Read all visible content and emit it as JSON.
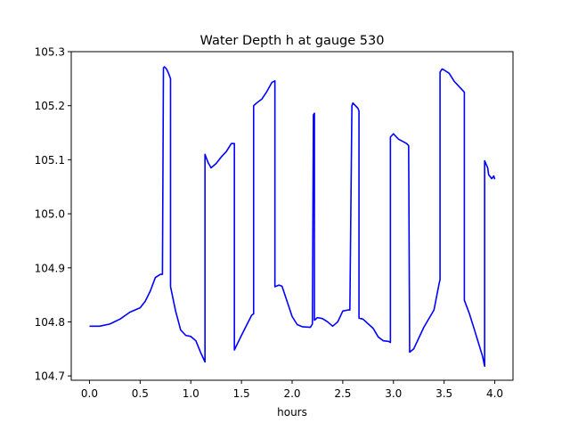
{
  "chart_data": {
    "type": "line",
    "title": "Water Depth h at gauge 530",
    "xlabel": "hours",
    "ylabel": "",
    "xlim": [
      -0.18,
      4.18
    ],
    "ylim": [
      104.692,
      105.3
    ],
    "xticks": [
      0.0,
      0.5,
      1.0,
      1.5,
      2.0,
      2.5,
      3.0,
      3.5,
      4.0
    ],
    "xtick_labels": [
      "0.0",
      "0.5",
      "1.0",
      "1.5",
      "2.0",
      "2.5",
      "3.0",
      "3.5",
      "4.0"
    ],
    "yticks": [
      104.7,
      104.8,
      104.9,
      105.0,
      105.1,
      105.2,
      105.3
    ],
    "ytick_labels": [
      "104.7",
      "104.8",
      "104.9",
      "105.0",
      "105.1",
      "105.2",
      "105.3"
    ],
    "grid": false,
    "line_color": "#0000ff",
    "series": [
      {
        "name": "",
        "x": [
          0.0,
          0.1,
          0.2,
          0.3,
          0.4,
          0.5,
          0.55,
          0.6,
          0.65,
          0.7,
          0.72,
          0.73,
          0.74,
          0.76,
          0.78,
          0.8,
          0.8,
          0.85,
          0.9,
          0.95,
          1.0,
          1.05,
          1.1,
          1.14,
          1.14,
          1.15,
          1.17,
          1.2,
          1.25,
          1.3,
          1.35,
          1.4,
          1.43,
          1.43,
          1.5,
          1.6,
          1.62,
          1.62,
          1.65,
          1.7,
          1.75,
          1.8,
          1.83,
          1.83,
          1.87,
          1.9,
          2.0,
          2.05,
          2.1,
          2.18,
          2.2,
          2.21,
          2.22,
          2.22,
          2.25,
          2.3,
          2.35,
          2.4,
          2.45,
          2.5,
          2.55,
          2.57,
          2.59,
          2.6,
          2.6,
          2.65,
          2.66,
          2.66,
          2.7,
          2.8,
          2.85,
          2.9,
          2.95,
          2.97,
          2.97,
          3.0,
          3.05,
          3.1,
          3.13,
          3.14,
          3.15,
          3.16,
          3.2,
          3.3,
          3.4,
          3.45,
          3.46,
          3.46,
          3.48,
          3.5,
          3.55,
          3.6,
          3.65,
          3.7,
          3.7,
          3.75,
          3.8,
          3.88,
          3.9,
          3.9,
          3.93,
          3.94,
          3.95,
          3.97,
          3.99,
          4.0
        ],
        "y": [
          104.792,
          104.792,
          104.796,
          104.805,
          104.818,
          104.826,
          104.838,
          104.857,
          104.882,
          104.888,
          104.888,
          105.27,
          105.272,
          105.268,
          105.26,
          105.25,
          104.865,
          104.82,
          104.785,
          104.775,
          104.773,
          104.765,
          104.742,
          104.726,
          105.11,
          105.105,
          105.095,
          105.085,
          105.093,
          105.105,
          105.115,
          105.13,
          105.13,
          104.748,
          104.775,
          104.812,
          104.815,
          105.2,
          105.205,
          105.212,
          105.226,
          105.243,
          105.246,
          104.865,
          104.868,
          104.866,
          104.81,
          104.795,
          104.791,
          104.79,
          104.796,
          105.183,
          105.186,
          104.803,
          104.808,
          104.806,
          104.8,
          104.792,
          104.8,
          104.82,
          104.822,
          104.822,
          105.2,
          105.205,
          105.205,
          105.195,
          105.19,
          104.807,
          104.805,
          104.788,
          104.772,
          104.765,
          104.764,
          104.762,
          105.142,
          105.148,
          105.138,
          105.133,
          105.13,
          105.128,
          105.126,
          104.744,
          104.75,
          104.79,
          104.822,
          104.87,
          104.878,
          105.262,
          105.268,
          105.266,
          105.26,
          105.245,
          105.235,
          105.225,
          104.84,
          104.815,
          104.785,
          104.736,
          104.718,
          105.098,
          105.085,
          105.072,
          105.07,
          105.065,
          105.07,
          105.064
        ]
      }
    ]
  }
}
